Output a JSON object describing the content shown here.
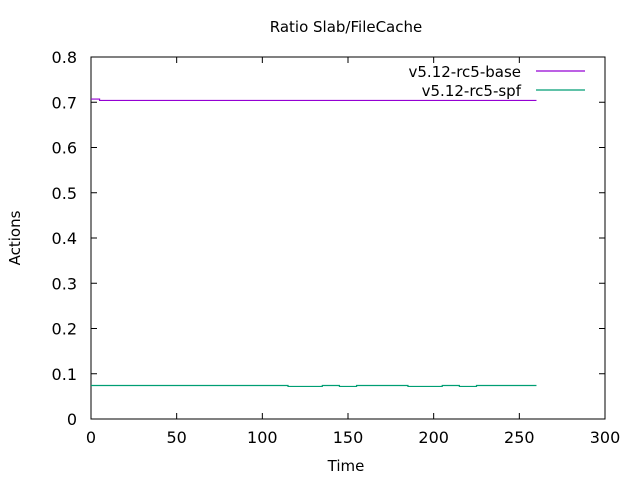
{
  "chart_data": {
    "type": "line",
    "title": "Ratio Slab/FileCache",
    "xlabel": "Time",
    "ylabel": "Actions",
    "xlim": [
      0,
      300
    ],
    "ylim": [
      0,
      0.8
    ],
    "x_ticks": [
      0,
      50,
      100,
      150,
      200,
      250,
      300
    ],
    "y_ticks": [
      0,
      0.1,
      0.2,
      0.3,
      0.4,
      0.5,
      0.6,
      0.7,
      0.8
    ],
    "grid": false,
    "legend_position": "top-right",
    "series": [
      {
        "name": "v5.12-rc5-base",
        "color": "#9400d3",
        "points": [
          [
            0,
            0.707
          ],
          [
            5,
            0.707
          ],
          [
            5,
            0.704
          ],
          [
            260,
            0.704
          ]
        ]
      },
      {
        "name": "v5.12-rc5-spf",
        "color": "#009e73",
        "points": [
          [
            0,
            0.074
          ],
          [
            115,
            0.074
          ],
          [
            115,
            0.072
          ],
          [
            135,
            0.072
          ],
          [
            135,
            0.074
          ],
          [
            145,
            0.074
          ],
          [
            145,
            0.072
          ],
          [
            155,
            0.072
          ],
          [
            155,
            0.074
          ],
          [
            185,
            0.074
          ],
          [
            185,
            0.072
          ],
          [
            205,
            0.072
          ],
          [
            205,
            0.074
          ],
          [
            215,
            0.074
          ],
          [
            215,
            0.072
          ],
          [
            225,
            0.072
          ],
          [
            225,
            0.074
          ],
          [
            260,
            0.074
          ]
        ]
      }
    ]
  }
}
